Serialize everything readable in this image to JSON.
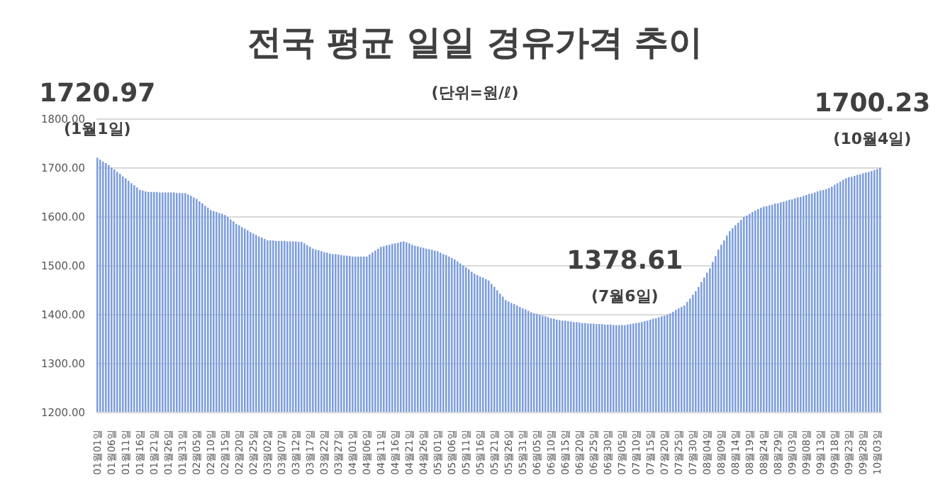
{
  "chart_data": {
    "type": "bar",
    "title": "전국 평균 일일 경유가격 추이",
    "subtitle": "(단위=원/ℓ)",
    "categories": [
      "01월01일",
      null,
      null,
      null,
      null,
      "01월06일",
      null,
      null,
      null,
      null,
      "01월11일",
      null,
      null,
      null,
      null,
      "01월16일",
      null,
      null,
      null,
      null,
      "01월21일",
      null,
      null,
      null,
      null,
      "01월26일",
      null,
      null,
      null,
      null,
      "01월31일",
      null,
      null,
      null,
      null,
      "02월05일",
      null,
      null,
      null,
      null,
      "02월10일",
      null,
      null,
      null,
      null,
      "02월15일",
      null,
      null,
      null,
      null,
      "02월20일",
      null,
      null,
      null,
      null,
      "02월25일",
      null,
      null,
      null,
      null,
      "03월02일",
      null,
      null,
      null,
      null,
      "03월07일",
      null,
      null,
      null,
      null,
      "03월12일",
      null,
      null,
      null,
      null,
      "03월17일",
      null,
      null,
      null,
      null,
      "03월22일",
      null,
      null,
      null,
      null,
      "03월27일",
      null,
      null,
      null,
      null,
      "04월01일",
      null,
      null,
      null,
      null,
      "04월06일",
      null,
      null,
      null,
      null,
      "04월11일",
      null,
      null,
      null,
      null,
      "04월16일",
      null,
      null,
      null,
      null,
      "04월21일",
      null,
      null,
      null,
      null,
      "04월26일",
      null,
      null,
      null,
      null,
      "05월01일",
      null,
      null,
      null,
      null,
      "05월06일",
      null,
      null,
      null,
      null,
      "05월11일",
      null,
      null,
      null,
      null,
      "05월16일",
      null,
      null,
      null,
      null,
      "05월21일",
      null,
      null,
      null,
      null,
      "05월26일",
      null,
      null,
      null,
      null,
      "05월31일",
      null,
      null,
      null,
      null,
      "06월05일",
      null,
      null,
      null,
      null,
      "06월10일",
      null,
      null,
      null,
      null,
      "06월15일",
      null,
      null,
      null,
      null,
      "06월20일",
      null,
      null,
      null,
      null,
      "06월25일",
      null,
      null,
      null,
      null,
      "06월30일",
      null,
      null,
      null,
      null,
      "07월05일",
      null,
      null,
      null,
      null,
      "07월10일",
      null,
      null,
      null,
      null,
      "07월15일",
      null,
      null,
      null,
      null,
      "07월20일",
      null,
      null,
      null,
      null,
      "07월25일",
      null,
      null,
      null,
      null,
      "07월30일",
      null,
      null,
      null,
      null,
      "08월04일",
      null,
      null,
      null,
      null,
      "08월09일",
      null,
      null,
      null,
      null,
      "08월14일",
      null,
      null,
      null,
      null,
      "08월19일",
      null,
      null,
      null,
      null,
      "08월24일",
      null,
      null,
      null,
      null,
      "08월29일",
      null,
      null,
      null,
      null,
      "09월03일",
      null,
      null,
      null,
      null,
      "09월08일",
      null,
      null,
      null,
      null,
      "09월13일",
      null,
      null,
      null,
      null,
      "09월18일",
      null,
      null,
      null,
      null,
      "09월23일",
      null,
      null,
      null,
      null,
      "09월28일",
      null,
      null,
      null,
      null,
      "10월03일",
      null
    ],
    "values": [
      1720.97,
      1717,
      1713,
      1710,
      1706,
      1701,
      1697,
      1692,
      1688,
      1683,
      1679,
      1674,
      1669,
      1665,
      1660,
      1655,
      1654,
      1652,
      1651,
      1651,
      1651,
      1651,
      1650,
      1650,
      1650,
      1650,
      1650,
      1650,
      1649,
      1649,
      1649,
      1649,
      1646,
      1643,
      1640,
      1637,
      1632,
      1628,
      1623,
      1619,
      1614,
      1612,
      1610,
      1608,
      1606,
      1604,
      1600,
      1595,
      1591,
      1586,
      1583,
      1579,
      1576,
      1573,
      1569,
      1566,
      1563,
      1560,
      1558,
      1555,
      1552,
      1552,
      1552,
      1551,
      1551,
      1551,
      1551,
      1550,
      1550,
      1550,
      1550,
      1549,
      1549,
      1546,
      1542,
      1539,
      1535,
      1533,
      1532,
      1530,
      1528,
      1527,
      1525,
      1524,
      1524,
      1523,
      1522,
      1521,
      1521,
      1520,
      1519,
      1519,
      1519,
      1519,
      1519,
      1519,
      1523,
      1527,
      1531,
      1535,
      1539,
      1540,
      1542,
      1543,
      1545,
      1546,
      1547,
      1549,
      1550,
      1548,
      1546,
      1543,
      1541,
      1540,
      1538,
      1537,
      1535,
      1534,
      1533,
      1531,
      1530,
      1527,
      1524,
      1522,
      1519,
      1516,
      1513,
      1509,
      1505,
      1501,
      1497,
      1493,
      1488,
      1484,
      1481,
      1478,
      1476,
      1473,
      1470,
      1463,
      1457,
      1450,
      1443,
      1437,
      1430,
      1427,
      1424,
      1422,
      1419,
      1416,
      1413,
      1411,
      1408,
      1405,
      1403,
      1402,
      1400,
      1398,
      1397,
      1395,
      1393,
      1392,
      1390,
      1389,
      1388,
      1388,
      1387,
      1386,
      1385,
      1385,
      1384,
      1383,
      1383,
      1382,
      1382,
      1382,
      1381,
      1381,
      1381,
      1380,
      1380,
      1380,
      1379,
      1379,
      1379,
      1379,
      1378.61,
      1380,
      1381,
      1382,
      1383,
      1384,
      1385,
      1387,
      1388,
      1390,
      1392,
      1393,
      1395,
      1397,
      1398,
      1400,
      1403,
      1406,
      1410,
      1413,
      1416,
      1419,
      1426,
      1433,
      1441,
      1448,
      1457,
      1467,
      1476,
      1486,
      1495,
      1508,
      1520,
      1533,
      1543,
      1552,
      1562,
      1571,
      1577,
      1583,
      1588,
      1594,
      1600,
      1603,
      1606,
      1610,
      1613,
      1616,
      1619,
      1621,
      1622,
      1624,
      1625,
      1627,
      1628,
      1630,
      1631,
      1633,
      1635,
      1636,
      1638,
      1640,
      1641,
      1643,
      1645,
      1647,
      1648,
      1650,
      1652,
      1654,
      1655,
      1657,
      1659,
      1662,
      1666,
      1669,
      1672,
      1676,
      1679,
      1681,
      1682,
      1684,
      1686,
      1687,
      1689,
      1691,
      1692,
      1694,
      1696,
      1698,
      1700.23
    ],
    "value_labels": [
      "1720.97",
      null,
      null,
      null,
      null,
      null,
      null,
      null,
      null,
      null,
      null,
      null,
      null,
      null,
      null,
      null,
      null,
      null,
      null,
      null,
      null,
      null,
      null,
      null,
      null,
      null,
      null,
      null,
      null,
      null,
      null,
      null,
      null,
      null,
      null,
      null,
      null,
      null,
      null,
      null,
      null,
      null,
      null,
      null,
      null,
      null,
      null,
      null,
      null,
      null,
      null,
      null,
      null,
      null,
      null,
      null,
      null,
      null,
      null,
      null,
      null,
      null,
      null,
      null,
      null,
      null,
      null,
      null,
      null,
      null,
      null,
      null,
      null,
      null,
      null,
      null,
      null,
      null,
      null,
      null,
      null,
      null,
      null,
      null,
      null,
      null,
      null,
      null,
      null,
      null,
      null,
      null,
      null,
      null,
      null,
      null,
      null,
      null,
      null,
      null,
      null,
      null,
      null,
      null,
      null,
      null,
      null,
      null,
      null,
      null,
      null,
      null,
      null,
      null,
      null,
      null,
      null,
      null,
      null,
      null,
      null,
      null,
      null,
      null,
      null,
      null,
      null,
      null,
      null,
      null,
      null,
      null,
      null,
      null,
      null,
      null,
      null,
      null,
      null,
      null,
      null,
      null,
      null,
      null,
      null,
      null,
      null,
      null,
      null,
      null,
      null,
      null,
      null,
      null,
      null,
      null,
      null,
      null,
      null,
      null,
      null,
      null,
      null,
      null,
      null,
      null,
      null,
      null,
      null,
      null,
      null,
      null,
      null,
      null,
      null,
      null,
      null,
      null,
      null,
      null,
      null,
      null,
      null,
      null,
      null,
      null,
      "1378.61",
      null,
      null,
      null,
      null,
      null,
      null,
      null,
      null,
      null,
      null,
      null,
      null,
      null,
      null,
      null,
      null,
      null,
      null,
      null,
      null,
      null,
      null,
      null,
      null,
      null,
      null,
      null,
      null,
      null,
      null,
      null,
      null,
      null,
      null,
      null,
      null,
      null,
      null,
      null,
      null,
      null,
      null,
      null,
      null,
      null,
      null,
      null,
      null,
      null,
      null,
      null,
      null,
      null,
      null,
      null,
      null,
      null,
      null,
      null,
      null,
      null,
      null,
      null,
      null,
      null,
      null,
      null,
      null,
      null,
      null,
      null,
      null,
      null,
      null,
      null,
      null,
      null,
      null,
      null,
      null,
      null,
      null,
      null,
      null,
      null,
      null,
      null,
      null,
      null,
      "1700.23"
    ],
    "annotations": [
      "(1월1일)",
      "(7월6일)",
      "(10월4일)"
    ],
    "color": "#7f9fdc",
    "ylim": [
      1200,
      1800
    ],
    "yticks": [
      {
        "value": 1200,
        "label": "1200.00"
      },
      {
        "value": 1300,
        "label": "1300.00"
      },
      {
        "value": 1400,
        "label": "1400.00"
      },
      {
        "value": 1500,
        "label": "1500.00"
      },
      {
        "value": 1600,
        "label": "1600.00"
      },
      {
        "value": 1700,
        "label": "1700.00"
      },
      {
        "value": 1800,
        "label": "1800.00"
      }
    ],
    "grid": "y",
    "legend": false
  }
}
